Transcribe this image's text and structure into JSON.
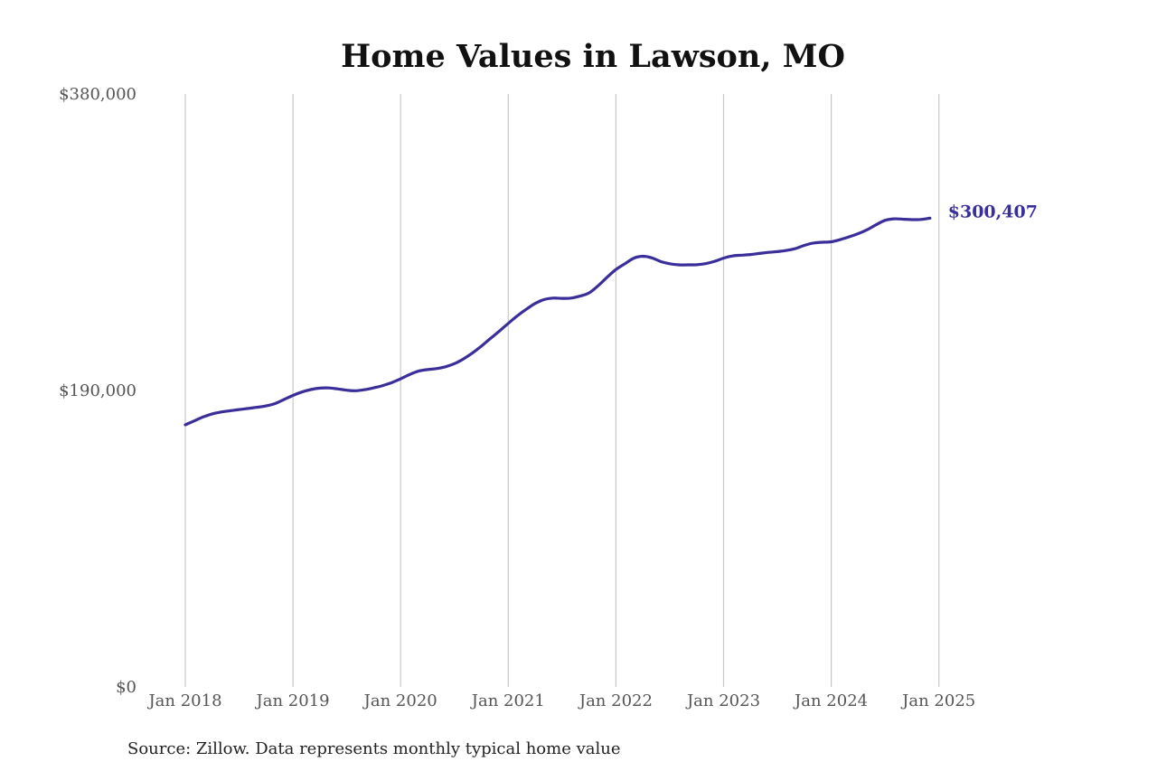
{
  "chart_data": {
    "type": "line",
    "title": "Home Values in Lawson, MO",
    "source": "Source: Zillow. Data represents monthly typical home value",
    "y_ticks": [
      {
        "value": 380000,
        "label": "$380,000"
      },
      {
        "value": 190000,
        "label": "$190,000"
      },
      {
        "value": 0,
        "label": "$0"
      }
    ],
    "x_ticks": [
      {
        "value": "2018-01",
        "label": "Jan 2018"
      },
      {
        "value": "2019-01",
        "label": "Jan 2019"
      },
      {
        "value": "2020-01",
        "label": "Jan 2020"
      },
      {
        "value": "2021-01",
        "label": "Jan 2021"
      },
      {
        "value": "2022-01",
        "label": "Jan 2022"
      },
      {
        "value": "2023-01",
        "label": "Jan 2023"
      },
      {
        "value": "2024-01",
        "label": "Jan 2024"
      },
      {
        "value": "2025-01",
        "label": "Jan 2025"
      }
    ],
    "ylim": [
      0,
      380000
    ],
    "xlim": [
      "2018-01",
      "2025-08"
    ],
    "grid": "vertical",
    "line_color": "#3a2f9a",
    "end_label": "$300,407",
    "series": [
      {
        "points": [
          [
            "2018-01",
            168000
          ],
          [
            "2018-02",
            170500
          ],
          [
            "2018-03",
            173000
          ],
          [
            "2018-04",
            175000
          ],
          [
            "2018-05",
            176200
          ],
          [
            "2018-06",
            177000
          ],
          [
            "2018-07",
            177800
          ],
          [
            "2018-08",
            178500
          ],
          [
            "2018-09",
            179200
          ],
          [
            "2018-10",
            180100
          ],
          [
            "2018-11",
            181600
          ],
          [
            "2018-12",
            184200
          ],
          [
            "2019-01",
            186800
          ],
          [
            "2019-02",
            189000
          ],
          [
            "2019-03",
            190600
          ],
          [
            "2019-04",
            191500
          ],
          [
            "2019-05",
            191600
          ],
          [
            "2019-06",
            191000
          ],
          [
            "2019-07",
            190200
          ],
          [
            "2019-08",
            189800
          ],
          [
            "2019-09",
            190500
          ],
          [
            "2019-10",
            191700
          ],
          [
            "2019-11",
            193100
          ],
          [
            "2019-12",
            195000
          ],
          [
            "2020-01",
            197500
          ],
          [
            "2020-02",
            200200
          ],
          [
            "2020-03",
            202400
          ],
          [
            "2020-04",
            203400
          ],
          [
            "2020-05",
            204000
          ],
          [
            "2020-06",
            205200
          ],
          [
            "2020-07",
            207200
          ],
          [
            "2020-08",
            210200
          ],
          [
            "2020-09",
            214000
          ],
          [
            "2020-10",
            218400
          ],
          [
            "2020-11",
            223300
          ],
          [
            "2020-12",
            228000
          ],
          [
            "2021-01",
            233000
          ],
          [
            "2021-02",
            237800
          ],
          [
            "2021-03",
            242000
          ],
          [
            "2021-04",
            245800
          ],
          [
            "2021-05",
            248300
          ],
          [
            "2021-06",
            249200
          ],
          [
            "2021-07",
            249000
          ],
          [
            "2021-08",
            249200
          ],
          [
            "2021-09",
            250500
          ],
          [
            "2021-10",
            252500
          ],
          [
            "2021-11",
            257000
          ],
          [
            "2021-12",
            262500
          ],
          [
            "2022-01",
            267500
          ],
          [
            "2022-02",
            271200
          ],
          [
            "2022-03",
            274800
          ],
          [
            "2022-04",
            276000
          ],
          [
            "2022-05",
            275000
          ],
          [
            "2022-06",
            272600
          ],
          [
            "2022-07",
            271200
          ],
          [
            "2022-08",
            270500
          ],
          [
            "2022-09",
            270500
          ],
          [
            "2022-10",
            270600
          ],
          [
            "2022-11",
            271300
          ],
          [
            "2022-12",
            272800
          ],
          [
            "2023-01",
            274800
          ],
          [
            "2023-02",
            276200
          ],
          [
            "2023-03",
            276700
          ],
          [
            "2023-04",
            277100
          ],
          [
            "2023-05",
            277800
          ],
          [
            "2023-06",
            278500
          ],
          [
            "2023-07",
            279000
          ],
          [
            "2023-08",
            279700
          ],
          [
            "2023-09",
            280900
          ],
          [
            "2023-10",
            283000
          ],
          [
            "2023-11",
            284500
          ],
          [
            "2023-12",
            285000
          ],
          [
            "2024-01",
            285300
          ],
          [
            "2024-02",
            286700
          ],
          [
            "2024-03",
            288500
          ],
          [
            "2024-04",
            290500
          ],
          [
            "2024-05",
            293000
          ],
          [
            "2024-06",
            296200
          ],
          [
            "2024-07",
            299000
          ],
          [
            "2024-08",
            300000
          ],
          [
            "2024-09",
            299800
          ],
          [
            "2024-10",
            299500
          ],
          [
            "2024-11",
            299600
          ],
          [
            "2024-12",
            300407
          ]
        ]
      }
    ]
  }
}
